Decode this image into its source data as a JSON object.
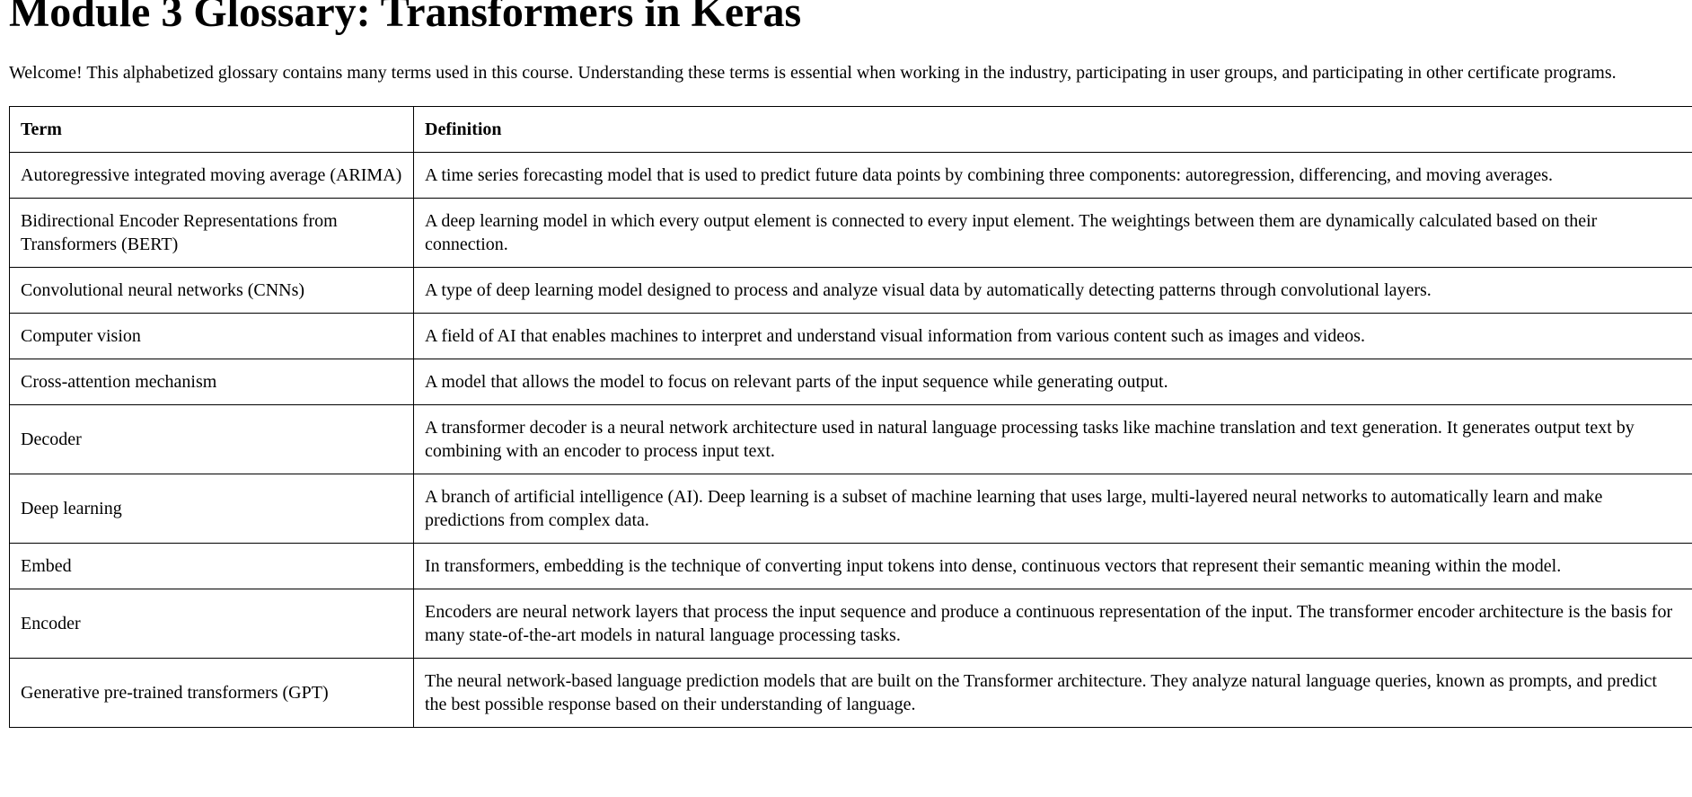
{
  "page": {
    "title": "Module 3 Glossary: Transformers in Keras",
    "intro": "Welcome! This alphabetized glossary contains many terms used in this course. Understanding these terms is essential when working in the industry, participating in user groups, and participating in other certificate programs."
  },
  "table": {
    "headers": {
      "term": "Term",
      "definition": "Definition"
    },
    "rows": [
      {
        "term": "Autoregressive integrated moving average (ARIMA)",
        "definition": "A time series forecasting model that is used to predict future data points by combining three components: autoregression, differencing, and moving averages."
      },
      {
        "term": "Bidirectional Encoder Representations from Transformers (BERT)",
        "definition": "A deep learning model in which every output element is connected to every input element. The weightings between them are dynamically calculated based on their connection."
      },
      {
        "term": "Convolutional neural networks (CNNs)",
        "definition": "A type of deep learning model designed to process and analyze visual data by automatically detecting patterns through convolutional layers."
      },
      {
        "term": "Computer vision",
        "definition": "A field of AI that enables machines to interpret and understand visual information from various content such as images and videos."
      },
      {
        "term": "Cross-attention mechanism",
        "definition": "A model that allows the model to focus on relevant parts of the input sequence while generating output."
      },
      {
        "term": "Decoder",
        "definition": "A transformer decoder is a neural network architecture used in natural language processing tasks like machine translation and text generation. It generates output text by combining with an encoder to process input text."
      },
      {
        "term": "Deep learning",
        "definition": "A branch of artificial intelligence (AI). Deep learning is a subset of machine learning that uses large, multi-layered neural networks to automatically learn and make predictions from complex data."
      },
      {
        "term": "Embed",
        "definition": "In transformers, embedding is the technique of converting input tokens into dense, continuous vectors that represent their semantic meaning within the model."
      },
      {
        "term": "Encoder",
        "definition": "Encoders are neural network layers that process the input sequence and produce a continuous representation of the input. The transformer encoder architecture is the basis for many state-of-the-art models in natural language processing tasks."
      },
      {
        "term": "Generative pre-trained transformers (GPT)",
        "definition": "The neural network-based language prediction models that are built on the Transformer architecture. They analyze natural language queries, known as prompts, and predict the best possible response based on their understanding of language."
      }
    ]
  }
}
